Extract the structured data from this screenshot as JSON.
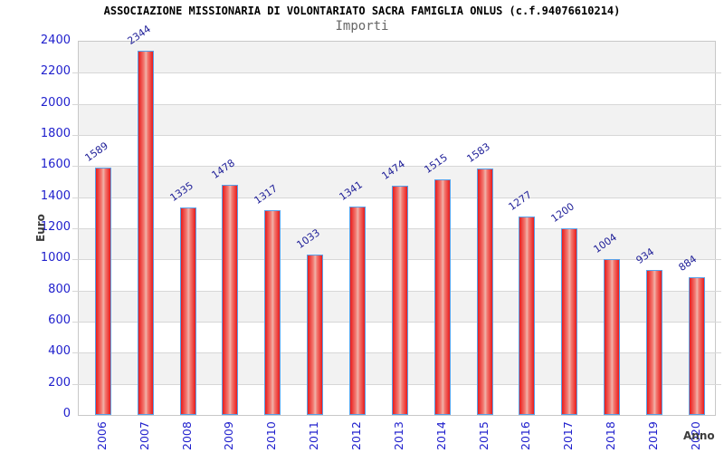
{
  "header": {
    "title": "ASSOCIAZIONE MISSIONARIA DI VOLONTARIATO SACRA FAMIGLIA ONLUS (c.f.94076610214)",
    "subtitle": "Importi"
  },
  "chart_data": {
    "type": "bar",
    "title": "ASSOCIAZIONE MISSIONARIA DI VOLONTARIATO SACRA FAMIGLIA ONLUS (c.f.94076610214)",
    "subtitle": "Importi",
    "xlabel": "Anno",
    "ylabel": "Euro",
    "categories": [
      "2006",
      "2007",
      "2008",
      "2009",
      "2010",
      "2011",
      "2012",
      "2013",
      "2014",
      "2015",
      "2016",
      "2017",
      "2018",
      "2019",
      "2020"
    ],
    "values": [
      1589,
      2344,
      1335,
      1478,
      1317,
      1033,
      1341,
      1474,
      1515,
      1583,
      1277,
      1200,
      1004,
      934,
      884
    ],
    "ylim": [
      0,
      2400
    ],
    "ytick_step": 200,
    "grid": "horizontal alternating bands with lines every 200",
    "legend": "none",
    "value_labels": "above bars, rotated",
    "colors": {
      "bar_fill": "#e81c1c",
      "bar_mid": "#f37a72",
      "bar_highlight": "#efb4aa",
      "bar_border": "#58a0e8",
      "axis_text": "#2121cd",
      "value_label": "#212199",
      "band_gray": "#f2f2f2",
      "grid_line": "#d7d7d7",
      "plot_border": "#c8c8c8",
      "title_color": "#000000",
      "subtitle_color": "#666666",
      "axis_title_color": "#3c3c3c"
    }
  }
}
